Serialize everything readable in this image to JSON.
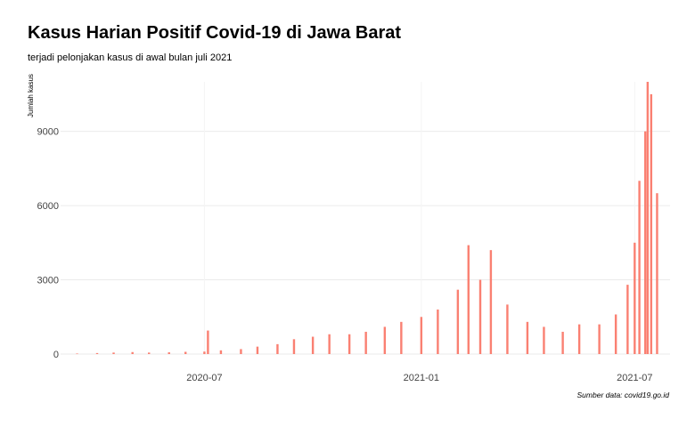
{
  "chart_data": {
    "type": "bar",
    "title": "Kasus Harian Positif Covid-19 di Jawa Barat",
    "subtitle": "terjadi pelonjakan kasus di awal bulan juli 2021",
    "ylabel": "Jumlah kasus",
    "xlabel": "",
    "caption": "Sumber data: covid19.go.id",
    "bar_color": "#FA8072",
    "grid": true,
    "ylim": [
      0,
      11000
    ],
    "xlim": [
      "2020-03-01",
      "2021-07-31"
    ],
    "yticks": [
      0,
      3000,
      6000,
      9000
    ],
    "ytick_labels": [
      "0",
      "3000",
      "6000",
      "9000"
    ],
    "xticks": [
      "2020-07-01",
      "2021-01-01",
      "2021-07-01"
    ],
    "xtick_labels": [
      "2020-07",
      "2021-01",
      "2021-07"
    ],
    "x": [
      "2020-03-15",
      "2020-04-01",
      "2020-04-15",
      "2020-05-01",
      "2020-05-15",
      "2020-06-01",
      "2020-06-15",
      "2020-07-01",
      "2020-07-04",
      "2020-07-15",
      "2020-08-01",
      "2020-08-15",
      "2020-09-01",
      "2020-09-15",
      "2020-10-01",
      "2020-10-15",
      "2020-11-01",
      "2020-11-15",
      "2020-12-01",
      "2020-12-15",
      "2021-01-01",
      "2021-01-15",
      "2021-02-01",
      "2021-02-10",
      "2021-02-20",
      "2021-03-01",
      "2021-03-15",
      "2021-04-01",
      "2021-04-15",
      "2021-05-01",
      "2021-05-15",
      "2021-06-01",
      "2021-06-15",
      "2021-06-25",
      "2021-07-01",
      "2021-07-05",
      "2021-07-10",
      "2021-07-12",
      "2021-07-15",
      "2021-07-20"
    ],
    "values": [
      20,
      40,
      60,
      80,
      60,
      70,
      90,
      100,
      950,
      150,
      200,
      300,
      400,
      600,
      700,
      800,
      800,
      900,
      1100,
      1300,
      1500,
      1800,
      2600,
      4400,
      3000,
      4200,
      2000,
      1300,
      1100,
      900,
      1200,
      1200,
      1600,
      2800,
      4500,
      7000,
      9000,
      11000,
      10500,
      6500
    ]
  }
}
